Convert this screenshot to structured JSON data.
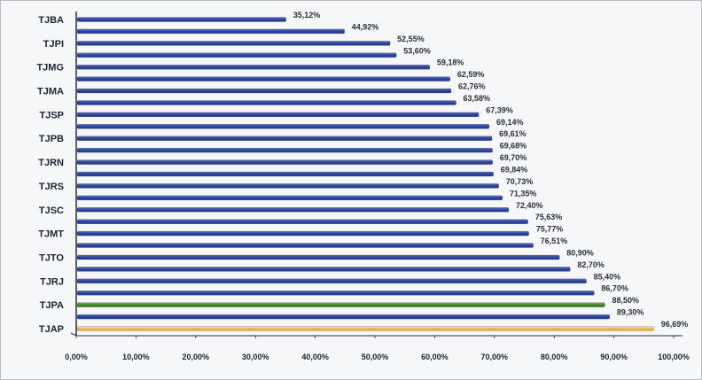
{
  "chart_data": {
    "type": "bar",
    "orientation": "horizontal",
    "grid": false,
    "legend": "none",
    "xlim": [
      0,
      100
    ],
    "xticks": [
      0,
      10,
      20,
      30,
      40,
      50,
      60,
      70,
      80,
      90,
      100
    ],
    "xtick_labels": [
      "0,00%",
      "10,00%",
      "20,00%",
      "30,00%",
      "40,00%",
      "50,00%",
      "60,00%",
      "70,00%",
      "80,00%",
      "90,00%",
      "100,00%"
    ],
    "visible_category_labels": [
      "TJBA",
      "TJPI",
      "TJMG",
      "TJMA",
      "TJSP",
      "TJPB",
      "TJRN",
      "TJRS",
      "TJSC",
      "TJMT",
      "TJTO",
      "TJRJ",
      "TJPA",
      "TJAP"
    ],
    "values": [
      35.12,
      44.92,
      52.55,
      53.6,
      59.18,
      62.59,
      62.76,
      63.58,
      67.39,
      69.14,
      69.61,
      69.68,
      69.7,
      69.84,
      70.73,
      71.35,
      72.4,
      75.63,
      75.77,
      76.51,
      80.9,
      82.7,
      85.4,
      86.7,
      88.5,
      89.3,
      96.69
    ],
    "value_labels": [
      "35,12%",
      "44,92%",
      "52,55%",
      "53,60%",
      "59,18%",
      "62,59%",
      "62,76%",
      "63,58%",
      "67,39%",
      "69,14%",
      "69,61%",
      "69,68%",
      "69,70%",
      "69,84%",
      "70,73%",
      "71,35%",
      "72,40%",
      "75,63%",
      "75,77%",
      "76,51%",
      "80,90%",
      "82,70%",
      "85,40%",
      "86,70%",
      "88,50%",
      "89,30%",
      "96,69%"
    ],
    "colors": {
      "default_bar": "#2a3f8f",
      "default_bar_light": "#5a73c7",
      "highlight_pa": "#3f7d2a",
      "highlight_pa_light": "#7fb35a",
      "highlight_ap": "#e8b450",
      "highlight_ap_light": "#fbe6b8",
      "axis": "#2a2f38"
    },
    "highlights": {
      "24": "pa",
      "26": "ap"
    }
  }
}
